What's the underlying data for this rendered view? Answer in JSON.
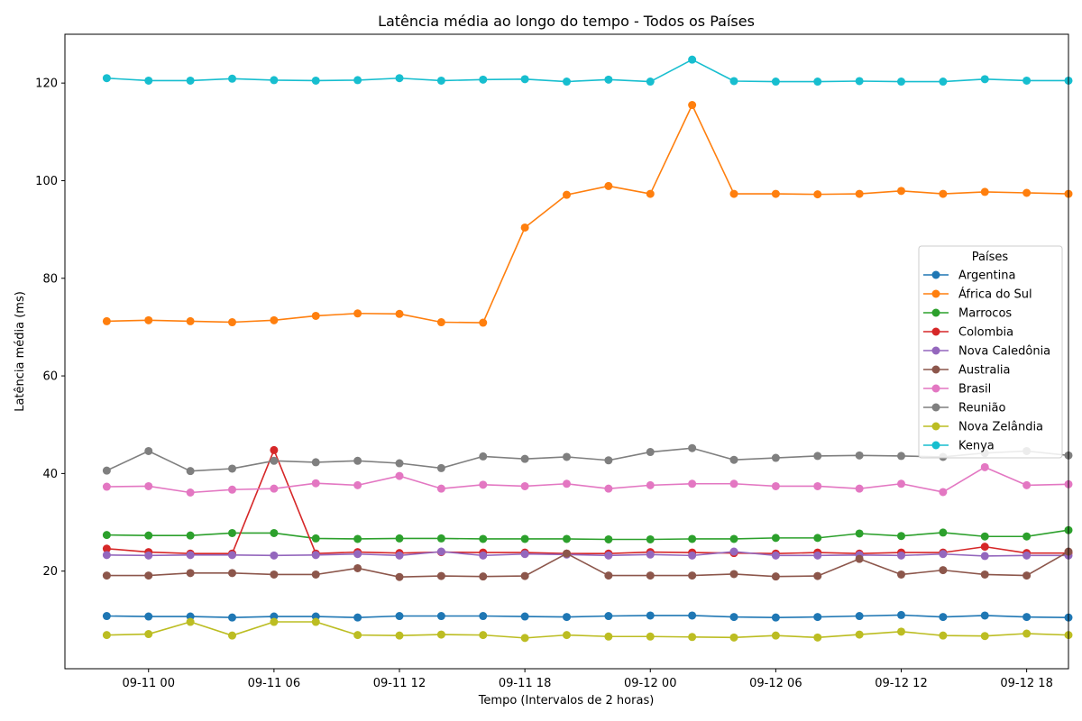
{
  "chart_data": {
    "type": "line",
    "title": "Latência média ao longo do tempo - Todos os Países",
    "xlabel": "Tempo (Intervalos de 2 horas)",
    "ylabel": "Latência média (ms)",
    "x_tick_labels": [
      "09-11 00",
      "09-11 06",
      "09-11 12",
      "09-11 18",
      "09-12 00",
      "09-12 06",
      "09-12 12",
      "09-12 18"
    ],
    "y_ticks": [
      20,
      40,
      60,
      80,
      100,
      120
    ],
    "y_range": [
      0,
      130
    ],
    "x_range": [
      "09-10 20:00",
      "09-12 20:00"
    ],
    "x": [
      "09-10 22:00",
      "09-11 00:00",
      "09-11 02:00",
      "09-11 04:00",
      "09-11 06:00",
      "09-11 08:00",
      "09-11 10:00",
      "09-11 12:00",
      "09-11 14:00",
      "09-11 16:00",
      "09-11 18:00",
      "09-11 20:00",
      "09-11 22:00",
      "09-12 00:00",
      "09-12 02:00",
      "09-12 04:00",
      "09-12 06:00",
      "09-12 08:00",
      "09-12 10:00",
      "09-12 12:00",
      "09-12 14:00",
      "09-12 16:00",
      "09-12 18:00",
      "09-12 20:00"
    ],
    "grid": false,
    "legend_title": "Países",
    "legend_position": "center-right",
    "series": [
      {
        "name": "Argentina",
        "color": "#1f77b4",
        "values": [
          10.8,
          10.7,
          10.7,
          10.5,
          10.7,
          10.7,
          10.5,
          10.8,
          10.8,
          10.8,
          10.7,
          10.6,
          10.8,
          10.9,
          10.9,
          10.6,
          10.5,
          10.6,
          10.8,
          11.0,
          10.6,
          10.9,
          10.6,
          10.5
        ]
      },
      {
        "name": "África do Sul",
        "color": "#ff7f0e",
        "values": [
          71.2,
          71.4,
          71.2,
          71.0,
          71.4,
          72.3,
          72.8,
          72.7,
          71.0,
          70.9,
          90.4,
          97.1,
          98.9,
          97.3,
          115.5,
          97.3,
          97.3,
          97.2,
          97.3,
          97.9,
          97.3,
          97.7,
          97.5,
          97.3
        ]
      },
      {
        "name": "Marrocos",
        "color": "#2ca02c",
        "values": [
          27.4,
          27.3,
          27.3,
          27.8,
          27.8,
          26.7,
          26.6,
          26.7,
          26.7,
          26.6,
          26.6,
          26.6,
          26.5,
          26.5,
          26.6,
          26.6,
          26.8,
          26.8,
          27.7,
          27.2,
          27.9,
          27.1,
          27.1,
          28.4
        ]
      },
      {
        "name": "Colombia",
        "color": "#d62728",
        "values": [
          24.6,
          23.9,
          23.6,
          23.6,
          44.8,
          23.6,
          23.9,
          23.7,
          23.9,
          23.8,
          23.8,
          23.6,
          23.6,
          23.9,
          23.8,
          23.7,
          23.6,
          23.8,
          23.6,
          23.8,
          23.8,
          25.0,
          23.7,
          23.7
        ]
      },
      {
        "name": "Nova Caledônia",
        "color": "#9467bd",
        "values": [
          23.3,
          23.2,
          23.3,
          23.3,
          23.2,
          23.3,
          23.5,
          23.2,
          24.0,
          23.2,
          23.5,
          23.4,
          23.2,
          23.4,
          23.2,
          24.0,
          23.2,
          23.2,
          23.3,
          23.2,
          23.5,
          23.1,
          23.2,
          23.2
        ]
      },
      {
        "name": "Australia",
        "color": "#8c564b",
        "values": [
          19.1,
          19.1,
          19.6,
          19.6,
          19.3,
          19.3,
          20.6,
          18.8,
          19.0,
          18.9,
          19.0,
          23.6,
          19.1,
          19.1,
          19.1,
          19.4,
          18.9,
          19.0,
          22.5,
          19.3,
          20.2,
          19.3,
          19.1,
          24.0
        ]
      },
      {
        "name": "Brasil",
        "color": "#e377c2",
        "values": [
          37.3,
          37.4,
          36.1,
          36.7,
          36.9,
          38.0,
          37.6,
          39.5,
          36.9,
          37.7,
          37.4,
          37.9,
          36.9,
          37.6,
          37.9,
          37.9,
          37.4,
          37.4,
          36.9,
          37.9,
          36.2,
          41.3,
          37.6,
          37.8
        ]
      },
      {
        "name": "Reunião",
        "color": "#7f7f7f",
        "values": [
          40.6,
          44.6,
          40.5,
          41.0,
          42.6,
          42.3,
          42.6,
          42.1,
          41.1,
          43.5,
          43.0,
          43.4,
          42.7,
          44.4,
          45.2,
          42.8,
          43.2,
          43.6,
          43.7,
          43.6,
          43.4,
          44.2,
          44.6,
          43.7
        ]
      },
      {
        "name": "Nova Zelândia",
        "color": "#bcbd22",
        "values": [
          6.9,
          7.1,
          9.6,
          6.8,
          9.6,
          9.6,
          6.9,
          6.8,
          7.0,
          6.9,
          6.3,
          6.9,
          6.6,
          6.6,
          6.5,
          6.4,
          6.8,
          6.4,
          7.0,
          7.6,
          6.8,
          6.7,
          7.2,
          6.9
        ]
      },
      {
        "name": "Kenya",
        "color": "#17becf",
        "values": [
          121.0,
          120.5,
          120.5,
          120.9,
          120.6,
          120.5,
          120.6,
          121.0,
          120.5,
          120.7,
          120.8,
          120.3,
          120.7,
          120.3,
          124.8,
          120.4,
          120.3,
          120.3,
          120.4,
          120.3,
          120.3,
          120.8,
          120.5,
          120.5
        ]
      }
    ]
  }
}
